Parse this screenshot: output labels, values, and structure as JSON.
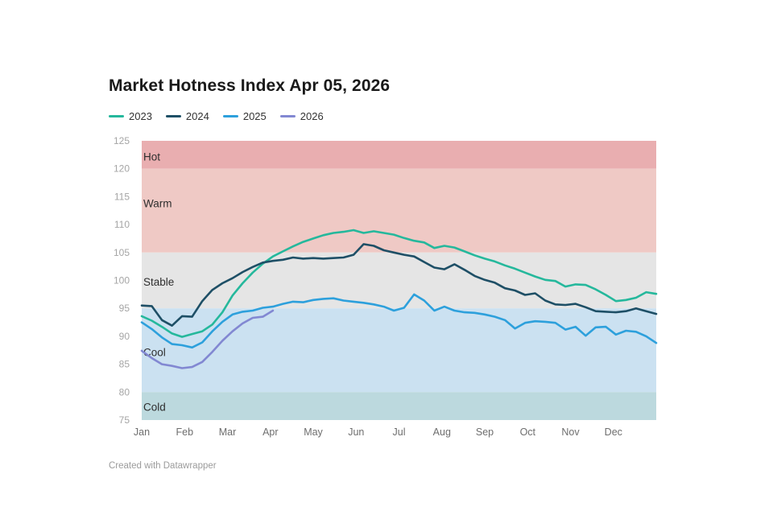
{
  "title": "Market Hotness Index Apr 05, 2026",
  "footer": {
    "attribution": "Created with Datawrapper"
  },
  "chart_data": {
    "type": "line",
    "title": "Market Hotness Index Apr 05, 2026",
    "grid": false,
    "legend_position": "top-left",
    "x_sampling": "weekly",
    "months": [
      "Jan",
      "Feb",
      "Mar",
      "Apr",
      "May",
      "Jun",
      "Jul",
      "Aug",
      "Sep",
      "Oct",
      "Nov",
      "Dec"
    ],
    "yticks": [
      125,
      120,
      115,
      110,
      105,
      100,
      95,
      90,
      85,
      80,
      75
    ],
    "ylim": [
      75,
      125
    ],
    "bands": [
      {
        "label": "Hot",
        "from": 120,
        "to": 125,
        "color": "#e9aeb0",
        "label_value": 122.2
      },
      {
        "label": "Warm",
        "from": 105,
        "to": 120,
        "color": "#efc9c5",
        "label_value": 113.8
      },
      {
        "label": "Stable",
        "from": 95,
        "to": 105,
        "color": "#e5e5e5",
        "label_value": 99.8
      },
      {
        "label": "Cool",
        "from": 80,
        "to": 95,
        "color": "#cbe1f1",
        "label_value": 87.2
      },
      {
        "label": "Cold",
        "from": 75,
        "to": 80,
        "color": "#bcd9de",
        "label_value": 77.4
      }
    ],
    "series": [
      {
        "name": "2023",
        "color": "#25b89c",
        "values": [
          93.6,
          92.8,
          91.7,
          90.5,
          89.9,
          90.4,
          90.9,
          92.1,
          94.3,
          97.3,
          99.5,
          101.4,
          103.0,
          104.3,
          105.2,
          106.1,
          106.9,
          107.5,
          108.1,
          108.5,
          108.7,
          109.0,
          108.5,
          108.8,
          108.5,
          108.2,
          107.6,
          107.1,
          106.8,
          105.8,
          106.2,
          105.9,
          105.2,
          104.5,
          103.9,
          103.4,
          102.7,
          102.1,
          101.4,
          100.7,
          100.1,
          99.9,
          98.9,
          99.3,
          99.2,
          98.4,
          97.4,
          96.3,
          96.5,
          96.9,
          97.9,
          97.6
        ]
      },
      {
        "name": "2024",
        "color": "#1e4f66",
        "values": [
          95.5,
          95.4,
          92.9,
          91.9,
          93.6,
          93.5,
          96.3,
          98.3,
          99.5,
          100.4,
          101.5,
          102.4,
          103.2,
          103.5,
          103.7,
          104.1,
          103.9,
          104.0,
          103.9,
          104.0,
          104.1,
          104.6,
          106.5,
          106.2,
          105.4,
          105.0,
          104.6,
          104.3,
          103.3,
          102.3,
          102.0,
          102.9,
          101.9,
          100.8,
          100.1,
          99.6,
          98.6,
          98.2,
          97.4,
          97.7,
          96.4,
          95.7,
          95.6,
          95.8,
          95.2,
          94.5,
          94.4,
          94.3,
          94.5,
          95.0,
          94.5,
          94.0
        ]
      },
      {
        "name": "2025",
        "color": "#2da0dc",
        "values": [
          92.5,
          91.3,
          89.8,
          88.6,
          88.4,
          88.0,
          88.9,
          90.9,
          92.6,
          93.9,
          94.4,
          94.6,
          95.1,
          95.3,
          95.8,
          96.2,
          96.1,
          96.5,
          96.7,
          96.8,
          96.4,
          96.2,
          96.0,
          95.7,
          95.3,
          94.6,
          95.1,
          97.5,
          96.4,
          94.6,
          95.3,
          94.6,
          94.3,
          94.2,
          93.9,
          93.5,
          92.9,
          91.4,
          92.4,
          92.7,
          92.6,
          92.4,
          91.2,
          91.7,
          90.1,
          91.6,
          91.7,
          90.3,
          91.0,
          90.8,
          90.0,
          88.8
        ]
      },
      {
        "name": "2026",
        "color": "#8288d2",
        "values": [
          87.4,
          86.1,
          85.0,
          84.7,
          84.3,
          84.5,
          85.4,
          87.2,
          89.2,
          90.9,
          92.3,
          93.3,
          93.5,
          94.6
        ]
      }
    ]
  }
}
